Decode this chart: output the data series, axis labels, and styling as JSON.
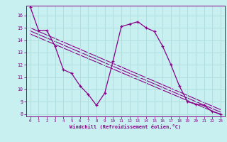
{
  "xlabel": "Windchill (Refroidissement éolien,°C)",
  "background_color": "#c8f0f0",
  "grid_color": "#b0dede",
  "line_color": "#880088",
  "hours": [
    0,
    1,
    2,
    3,
    4,
    5,
    6,
    7,
    8,
    9,
    10,
    11,
    12,
    13,
    14,
    15,
    16,
    17,
    18,
    19,
    20,
    21,
    22,
    23
  ],
  "windchill": [
    16.7,
    14.8,
    14.8,
    13.5,
    11.6,
    11.3,
    10.3,
    9.6,
    8.7,
    9.7,
    12.3,
    15.1,
    15.3,
    15.5,
    15.0,
    14.7,
    13.5,
    12.0,
    10.3,
    9.0,
    8.8,
    8.7,
    8.2,
    8.0
  ],
  "ylim": [
    7.8,
    16.8
  ],
  "xlim": [
    -0.5,
    23.5
  ],
  "yticks": [
    8,
    9,
    10,
    11,
    12,
    13,
    14,
    15,
    16
  ],
  "xticks": [
    0,
    1,
    2,
    3,
    4,
    5,
    6,
    7,
    8,
    9,
    10,
    11,
    12,
    13,
    14,
    15,
    16,
    17,
    18,
    19,
    20,
    21,
    22,
    23
  ],
  "trend_y_start1": 15.0,
  "trend_y_end1": 8.35,
  "trend_y_start2": 14.75,
  "trend_y_end2": 8.15,
  "trend_y_start3": 14.5,
  "trend_y_end3": 7.95
}
